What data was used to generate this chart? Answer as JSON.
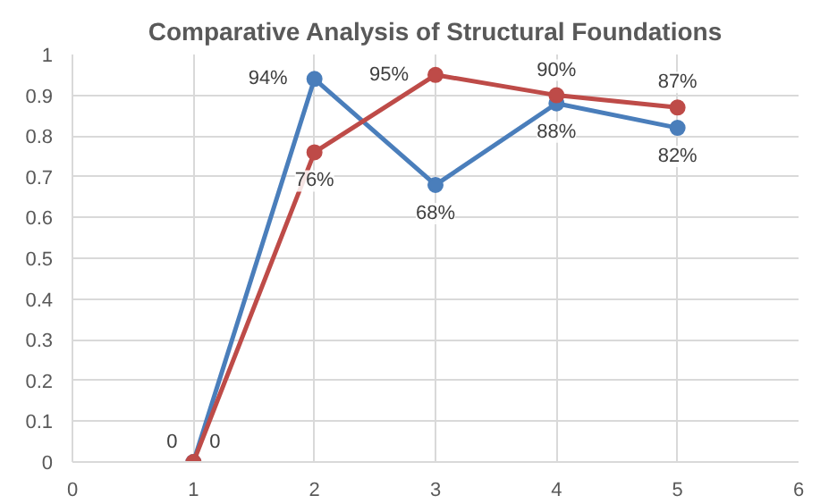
{
  "chart_data": {
    "type": "line",
    "title": "Comparative Analysis of Structural Foundations",
    "x": [
      1,
      2,
      3,
      4,
      5
    ],
    "series": [
      {
        "color": "#4a7ebb",
        "values": [
          0,
          0.94,
          0.68,
          0.88,
          0.82
        ],
        "value_labels": [
          "0",
          "94%",
          "68%",
          "88%",
          "82%"
        ]
      },
      {
        "color": "#be4b48",
        "values": [
          0,
          0.76,
          0.95,
          0.9,
          0.87
        ],
        "value_labels": [
          "0",
          "76%",
          "95%",
          "90%",
          "87%"
        ]
      }
    ],
    "xlim": [
      0,
      6
    ],
    "xticks": [
      0,
      1,
      2,
      3,
      4,
      5,
      6
    ],
    "ylim": [
      0,
      1
    ],
    "yticks": [
      0,
      0.1,
      0.2,
      0.3,
      0.4,
      0.5,
      0.6,
      0.7,
      0.8,
      0.9,
      1
    ],
    "grid": true,
    "marker": "circle",
    "line_style": "solid"
  }
}
